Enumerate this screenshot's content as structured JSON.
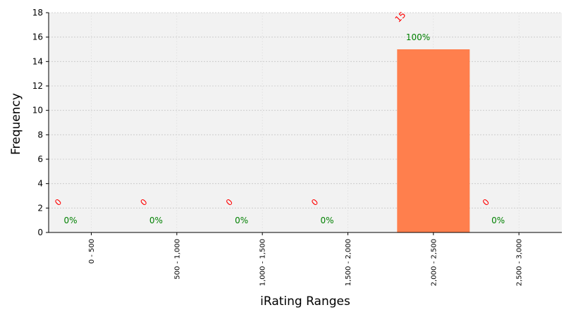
{
  "chart_data": {
    "type": "bar",
    "title": "",
    "xlabel": "iRating Ranges",
    "ylabel": "Frequency",
    "categories": [
      "0 - 500",
      "500 - 1,000",
      "1,000 - 1,500",
      "1,500 - 2,000",
      "2,000 - 2,500",
      "2,500 - 3,000"
    ],
    "values": [
      0,
      0,
      0,
      0,
      15,
      0
    ],
    "count_labels": [
      "0",
      "0",
      "0",
      "0",
      "15",
      "0"
    ],
    "percent_labels": [
      "0%",
      "0%",
      "0%",
      "0%",
      "100%",
      "0%"
    ],
    "ylim": [
      0,
      18
    ],
    "yticks": [
      0,
      2,
      4,
      6,
      8,
      10,
      12,
      14,
      16,
      18
    ],
    "grid": true,
    "colors": {
      "bar": "#ff7f4d",
      "plot_background": "#f2f2f2",
      "count_label": "#ff0000",
      "percent_label": "#008000",
      "grid": "#c8c8c8"
    }
  }
}
